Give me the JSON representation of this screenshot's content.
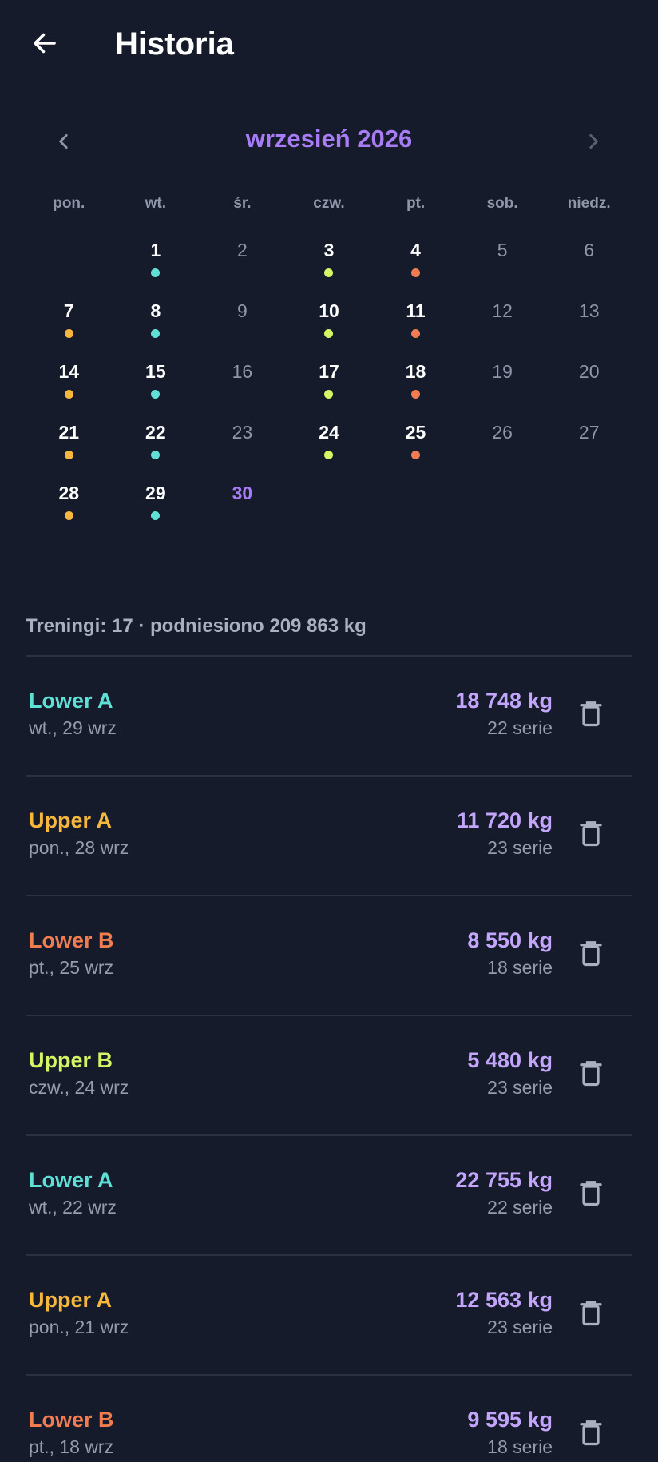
{
  "header": {
    "title": "Historia"
  },
  "calendar": {
    "month_label": "wrzesień 2026",
    "weekdays": [
      "pon.",
      "wt.",
      "śr.",
      "czw.",
      "pt.",
      "sob.",
      "niedz."
    ],
    "leading_blanks": 1,
    "today": 30,
    "colors": {
      "lower_a": "#5fe0d7",
      "upper_a": "#f6b73c",
      "lower_b": "#f07c4f",
      "upper_b": "#d4f564",
      "accent": "#a87cf5"
    },
    "days": [
      {
        "n": "1",
        "dot": "#5fe0d7"
      },
      {
        "n": "2",
        "dot": null
      },
      {
        "n": "3",
        "dot": "#d4f564"
      },
      {
        "n": "4",
        "dot": "#f07c4f"
      },
      {
        "n": "5",
        "dot": null
      },
      {
        "n": "6",
        "dot": null
      },
      {
        "n": "7",
        "dot": "#f6b73c"
      },
      {
        "n": "8",
        "dot": "#5fe0d7"
      },
      {
        "n": "9",
        "dot": null
      },
      {
        "n": "10",
        "dot": "#d4f564"
      },
      {
        "n": "11",
        "dot": "#f07c4f"
      },
      {
        "n": "12",
        "dot": null
      },
      {
        "n": "13",
        "dot": null
      },
      {
        "n": "14",
        "dot": "#f6b73c"
      },
      {
        "n": "15",
        "dot": "#5fe0d7"
      },
      {
        "n": "16",
        "dot": null
      },
      {
        "n": "17",
        "dot": "#d4f564"
      },
      {
        "n": "18",
        "dot": "#f07c4f"
      },
      {
        "n": "19",
        "dot": null
      },
      {
        "n": "20",
        "dot": null
      },
      {
        "n": "21",
        "dot": "#f6b73c"
      },
      {
        "n": "22",
        "dot": "#5fe0d7"
      },
      {
        "n": "23",
        "dot": null
      },
      {
        "n": "24",
        "dot": "#d4f564"
      },
      {
        "n": "25",
        "dot": "#f07c4f"
      },
      {
        "n": "26",
        "dot": null
      },
      {
        "n": "27",
        "dot": null
      },
      {
        "n": "28",
        "dot": "#f6b73c"
      },
      {
        "n": "29",
        "dot": "#5fe0d7"
      },
      {
        "n": "30",
        "dot": null
      }
    ]
  },
  "summary": "Treningi: 17 · podniesiono 209 863 kg",
  "workouts": [
    {
      "name": "Lower A",
      "color": "#5fe0d7",
      "date": "wt., 29 wrz",
      "volume": "18 748 kg",
      "sets": "22 serie"
    },
    {
      "name": "Upper A",
      "color": "#f6b73c",
      "date": "pon., 28 wrz",
      "volume": "11 720 kg",
      "sets": "23 serie"
    },
    {
      "name": "Lower B",
      "color": "#f07c4f",
      "date": "pt., 25 wrz",
      "volume": "8 550 kg",
      "sets": "18 serie"
    },
    {
      "name": "Upper B",
      "color": "#d4f564",
      "date": "czw., 24 wrz",
      "volume": "5 480 kg",
      "sets": "23 serie"
    },
    {
      "name": "Lower A",
      "color": "#5fe0d7",
      "date": "wt., 22 wrz",
      "volume": "22 755 kg",
      "sets": "22 serie"
    },
    {
      "name": "Upper A",
      "color": "#f6b73c",
      "date": "pon., 21 wrz",
      "volume": "12 563 kg",
      "sets": "23 serie"
    },
    {
      "name": "Lower B",
      "color": "#f07c4f",
      "date": "pt., 18 wrz",
      "volume": "9 595 kg",
      "sets": "18 serie"
    }
  ],
  "icons": {
    "back": "arrow-left-icon",
    "prev": "chevron-left-icon",
    "next": "chevron-right-icon",
    "delete": "trash-icon"
  }
}
